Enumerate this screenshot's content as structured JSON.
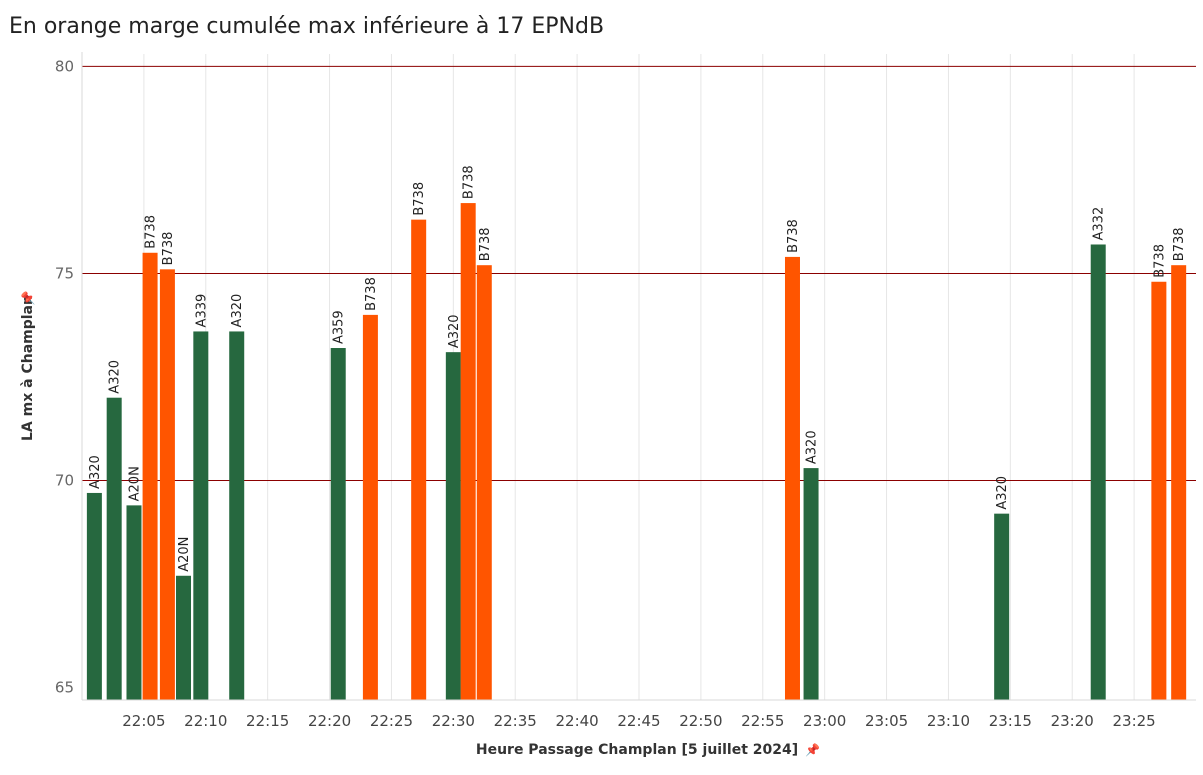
{
  "chart_data": {
    "type": "bar",
    "title": "En orange marge cumulée max inférieure à 17 EPNdB",
    "xlabel": "Heure Passage Champlan [5 juillet 2024]",
    "ylabel": "LA mx à Champlan",
    "ylim": [
      64.7,
      80.3
    ],
    "yticks": [
      65,
      70,
      75,
      80
    ],
    "reference_lines": [
      70,
      75,
      80
    ],
    "xticks": [
      "22:05",
      "22:10",
      "22:15",
      "22:20",
      "22:25",
      "22:30",
      "22:35",
      "22:40",
      "22:45",
      "22:50",
      "22:55",
      "23:00",
      "23:05",
      "23:10",
      "23:15",
      "23:20",
      "23:25"
    ],
    "xrange_minutes_after_22h": [
      0,
      90
    ],
    "colors": {
      "green": "#26683F",
      "orange": "#FF5500",
      "reference_line": "#8B0000",
      "grid": "#E6E6E6"
    },
    "bars": [
      {
        "minute": 1.0,
        "label": "A320",
        "value": 69.7,
        "color": "green"
      },
      {
        "minute": 2.6,
        "label": "A320",
        "value": 72.0,
        "color": "green"
      },
      {
        "minute": 4.2,
        "label": "A20N",
        "value": 69.4,
        "color": "green"
      },
      {
        "minute": 5.5,
        "label": "B738",
        "value": 75.5,
        "color": "orange"
      },
      {
        "minute": 6.9,
        "label": "B738",
        "value": 75.1,
        "color": "orange"
      },
      {
        "minute": 8.2,
        "label": "A20N",
        "value": 67.7,
        "color": "green"
      },
      {
        "minute": 9.6,
        "label": "A339",
        "value": 73.6,
        "color": "green"
      },
      {
        "minute": 12.5,
        "label": "A320",
        "value": 73.6,
        "color": "green"
      },
      {
        "minute": 20.7,
        "label": "A359",
        "value": 73.2,
        "color": "green"
      },
      {
        "minute": 23.3,
        "label": "B738",
        "value": 74.0,
        "color": "orange"
      },
      {
        "minute": 27.2,
        "label": "B738",
        "value": 76.3,
        "color": "orange"
      },
      {
        "minute": 30.0,
        "label": "A320",
        "value": 73.1,
        "color": "green"
      },
      {
        "minute": 31.2,
        "label": "B738",
        "value": 76.7,
        "color": "orange"
      },
      {
        "minute": 32.5,
        "label": "B738",
        "value": 75.2,
        "color": "orange"
      },
      {
        "minute": 57.4,
        "label": "B738",
        "value": 75.4,
        "color": "orange"
      },
      {
        "minute": 58.9,
        "label": "A320",
        "value": 70.3,
        "color": "green"
      },
      {
        "minute": 74.3,
        "label": "A320",
        "value": 69.2,
        "color": "green"
      },
      {
        "minute": 82.1,
        "label": "A332",
        "value": 75.7,
        "color": "green"
      },
      {
        "minute": 87.0,
        "label": "B738",
        "value": 74.8,
        "color": "orange"
      },
      {
        "minute": 88.6,
        "label": "B738",
        "value": 75.2,
        "color": "orange"
      }
    ]
  }
}
